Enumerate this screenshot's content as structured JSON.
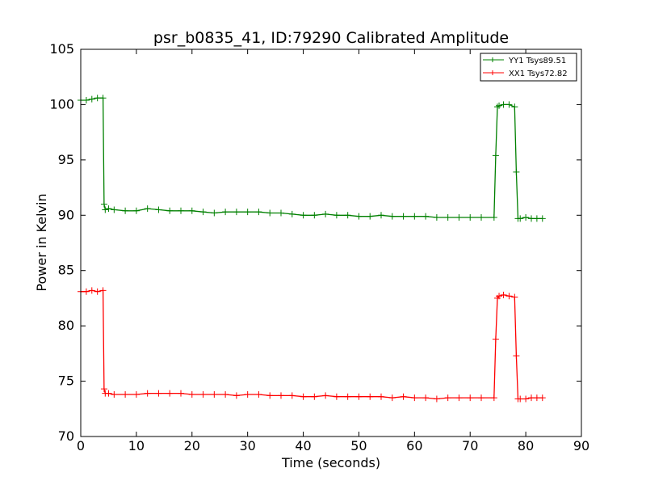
{
  "chart_data": {
    "type": "line",
    "title": "psr_b0835_41, ID:79290 Calibrated Amplitude",
    "xlabel": "Time (seconds)",
    "ylabel": "Power in Kelvin",
    "xlim": [
      0,
      90
    ],
    "ylim": [
      70,
      105
    ],
    "xticks": [
      0,
      10,
      20,
      30,
      40,
      50,
      60,
      70,
      80,
      90
    ],
    "yticks": [
      70,
      75,
      80,
      85,
      90,
      95,
      100,
      105
    ],
    "grid": false,
    "legend_position": "top-right",
    "series": [
      {
        "name": "YY1 Tsys89.51",
        "color": "#008000",
        "x": [
          0,
          1,
          2,
          3,
          4,
          4.2,
          4.4,
          5,
          6,
          8,
          10,
          12,
          14,
          16,
          18,
          20,
          22,
          24,
          26,
          28,
          30,
          32,
          34,
          36,
          38,
          40,
          42,
          44,
          46,
          48,
          50,
          52,
          54,
          56,
          58,
          60,
          62,
          64,
          66,
          68,
          70,
          72,
          74.3,
          74.6,
          74.9,
          75.2,
          76,
          77,
          78,
          78.3,
          78.6,
          79,
          80,
          81,
          82,
          83
        ],
        "y": [
          100.4,
          100.4,
          100.5,
          100.6,
          100.6,
          91.0,
          90.5,
          90.6,
          90.5,
          90.4,
          90.4,
          90.6,
          90.5,
          90.4,
          90.4,
          90.4,
          90.3,
          90.2,
          90.3,
          90.3,
          90.3,
          90.3,
          90.2,
          90.2,
          90.1,
          90.0,
          90.0,
          90.1,
          90.0,
          90.0,
          89.9,
          89.9,
          90.0,
          89.9,
          89.9,
          89.9,
          89.9,
          89.8,
          89.8,
          89.8,
          89.8,
          89.8,
          89.8,
          95.4,
          99.8,
          99.9,
          100.0,
          100.0,
          99.8,
          93.9,
          89.7,
          89.7,
          89.8,
          89.7,
          89.7,
          89.7
        ]
      },
      {
        "name": "XX1 Tsys72.82",
        "color": "#ff0000",
        "x": [
          0,
          1,
          2,
          3,
          4,
          4.2,
          4.4,
          5,
          6,
          8,
          10,
          12,
          14,
          16,
          18,
          20,
          22,
          24,
          26,
          28,
          30,
          32,
          34,
          36,
          38,
          40,
          42,
          44,
          46,
          48,
          50,
          52,
          54,
          56,
          58,
          60,
          62,
          64,
          66,
          68,
          70,
          72,
          74.3,
          74.6,
          74.9,
          75.2,
          76,
          77,
          78,
          78.3,
          78.6,
          79,
          80,
          81,
          82,
          83
        ],
        "y": [
          83.1,
          83.1,
          83.2,
          83.1,
          83.2,
          74.3,
          73.9,
          73.9,
          73.8,
          73.8,
          73.8,
          73.9,
          73.9,
          73.9,
          73.9,
          73.8,
          73.8,
          73.8,
          73.8,
          73.7,
          73.8,
          73.8,
          73.7,
          73.7,
          73.7,
          73.6,
          73.6,
          73.7,
          73.6,
          73.6,
          73.6,
          73.6,
          73.6,
          73.5,
          73.6,
          73.5,
          73.5,
          73.4,
          73.5,
          73.5,
          73.5,
          73.5,
          73.5,
          78.8,
          82.5,
          82.7,
          82.8,
          82.7,
          82.6,
          77.3,
          73.4,
          73.4,
          73.4,
          73.5,
          73.5,
          73.5
        ]
      }
    ]
  }
}
